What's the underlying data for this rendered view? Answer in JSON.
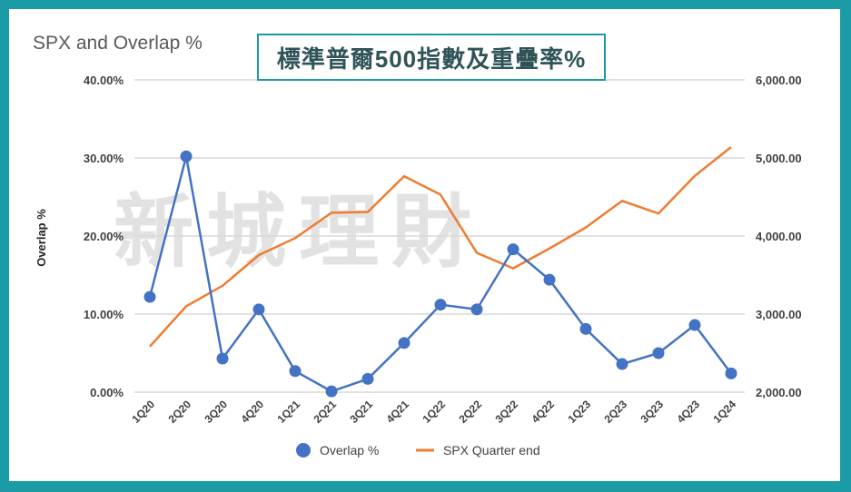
{
  "banner": "標準普爾500指數及重疊率%",
  "watermark": "新城理財",
  "chart_data": {
    "type": "line",
    "title": "SPX and Overlap %",
    "ylabel": "Overlap %",
    "categories": [
      "1Q20",
      "2Q20",
      "3Q20",
      "4Q20",
      "1Q21",
      "2Q21",
      "3Q21",
      "4Q21",
      "1Q22",
      "2Q22",
      "3Q22",
      "4Q22",
      "1Q23",
      "2Q23",
      "3Q23",
      "4Q23",
      "1Q24"
    ],
    "ylim": [
      0,
      40
    ],
    "y_ticks": [
      "0.00%",
      "10.00%",
      "20.00%",
      "30.00%",
      "40.00%"
    ],
    "y2lim": [
      2000,
      6000
    ],
    "y2_ticks": [
      "2,000.00",
      "3,000.00",
      "4,000.00",
      "5,000.00",
      "6,000.00"
    ],
    "grid": true,
    "legend": "bottom",
    "series": [
      {
        "name": "Overlap %",
        "axis": "left",
        "color": "#4472c4",
        "values": [
          12.2,
          30.2,
          4.3,
          10.6,
          2.7,
          0.1,
          1.7,
          6.3,
          11.2,
          10.6,
          18.3,
          14.4,
          8.1,
          3.6,
          5.0,
          8.6,
          2.4
        ]
      },
      {
        "name": "SPX Quarter end",
        "axis": "right",
        "color": "#ed7d31",
        "values": [
          2585,
          3100,
          3363,
          3756,
          3973,
          4298,
          4308,
          4766,
          4530,
          3785,
          3586,
          3840,
          4109,
          4450,
          4288,
          4770,
          5140
        ]
      }
    ]
  }
}
